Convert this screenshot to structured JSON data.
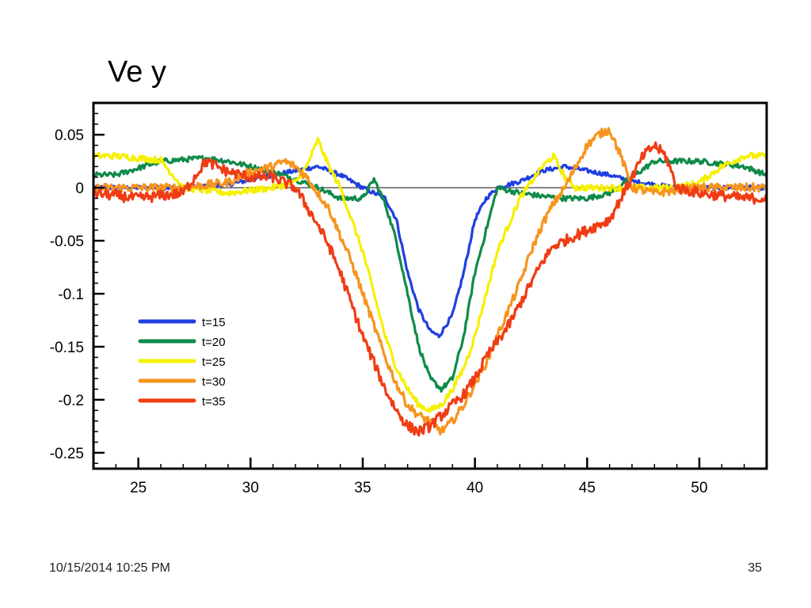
{
  "slide": {
    "title": "Ve y",
    "date": "10/15/2014 10:25 PM",
    "page_number": "35"
  },
  "chart_data": {
    "type": "line",
    "title": "",
    "xlabel": "",
    "ylabel": "",
    "xlim": [
      23,
      53
    ],
    "ylim": [
      -0.265,
      0.08
    ],
    "xticks": [
      25,
      30,
      35,
      40,
      45,
      50
    ],
    "xtick_labels": [
      "25",
      "30",
      "35",
      "40",
      "45",
      "50"
    ],
    "yticks": [
      0.05,
      0,
      -0.05,
      -0.1,
      -0.15,
      -0.2,
      -0.25
    ],
    "ytick_labels": [
      "0.05",
      "0",
      "-0.05",
      "-0.1",
      "-0.15",
      "-0.2",
      "-0.25"
    ],
    "grid": false,
    "legend_position": "lower-left",
    "reference_line": {
      "y": 0,
      "color": "#808080"
    },
    "series": [
      {
        "name": "t=15",
        "color": "#1f3fe0",
        "x": [
          23,
          25,
          27,
          29,
          31,
          32,
          33,
          34,
          35,
          35.5,
          36,
          36.5,
          37,
          37.5,
          38,
          38.4,
          39,
          39.5,
          40,
          40.5,
          41,
          42,
          43,
          44,
          45,
          46,
          47,
          48,
          49,
          50,
          51,
          53
        ],
        "y": [
          0.0,
          0.0,
          0.0,
          0.003,
          0.012,
          0.016,
          0.02,
          0.012,
          0.0,
          -0.005,
          -0.01,
          -0.03,
          -0.08,
          -0.115,
          -0.135,
          -0.14,
          -0.12,
          -0.08,
          -0.03,
          -0.01,
          0.0,
          0.006,
          0.016,
          0.02,
          0.016,
          0.012,
          0.006,
          0.003,
          0.0,
          0.0,
          0.0,
          0.0
        ]
      },
      {
        "name": "t=20",
        "color": "#0f8a4a",
        "x": [
          23,
          24,
          26,
          28,
          29,
          31,
          32,
          33,
          33.5,
          34,
          35,
          35.5,
          36,
          36.5,
          37,
          37.5,
          38,
          38.5,
          39,
          39.5,
          40,
          40.5,
          41,
          42,
          43,
          44,
          45,
          46,
          47,
          48,
          50,
          52,
          53
        ],
        "y": [
          0.012,
          0.012,
          0.025,
          0.028,
          0.025,
          0.015,
          0.008,
          0.0,
          -0.005,
          -0.01,
          -0.01,
          0.008,
          -0.015,
          -0.05,
          -0.1,
          -0.15,
          -0.18,
          -0.19,
          -0.18,
          -0.14,
          -0.08,
          -0.04,
          0.0,
          -0.005,
          -0.008,
          -0.01,
          -0.01,
          -0.005,
          0.01,
          0.025,
          0.025,
          0.02,
          0.012
        ]
      },
      {
        "name": "t=25",
        "color": "#f5f000",
        "x": [
          23,
          24,
          25,
          26,
          27,
          29,
          31,
          32,
          32.5,
          33,
          33.5,
          34,
          34.5,
          35,
          35.5,
          36,
          36.5,
          37,
          37.5,
          38,
          38.5,
          39,
          39.5,
          40,
          40.5,
          41,
          41.5,
          42,
          42.5,
          43,
          43.5,
          44,
          44.5,
          45,
          46,
          48,
          49,
          50,
          51,
          52,
          53
        ],
        "y": [
          0.03,
          0.03,
          0.028,
          0.026,
          0.0,
          -0.005,
          0.0,
          0.005,
          0.02,
          0.045,
          0.02,
          0.0,
          -0.03,
          -0.06,
          -0.1,
          -0.14,
          -0.17,
          -0.19,
          -0.205,
          -0.21,
          -0.205,
          -0.19,
          -0.17,
          -0.14,
          -0.1,
          -0.06,
          -0.035,
          -0.01,
          0.005,
          0.02,
          0.03,
          0.01,
          0.0,
          0.0,
          0.0,
          0.0,
          0.0,
          0.005,
          0.02,
          0.03,
          0.03
        ]
      },
      {
        "name": "t=30",
        "color": "#f7941d",
        "x": [
          23,
          25,
          27,
          29,
          30,
          31,
          31.5,
          32,
          32.5,
          33,
          33.5,
          34,
          34.5,
          35,
          35.5,
          36,
          36.5,
          37,
          37.5,
          38,
          38.5,
          39,
          39.5,
          40,
          40.5,
          41,
          41.5,
          42,
          42.5,
          43,
          43.5,
          44,
          44.5,
          45,
          45.5,
          46,
          46.5,
          47,
          48,
          50,
          52,
          53
        ],
        "y": [
          0.0,
          0.0,
          0.0,
          0.005,
          0.015,
          0.02,
          0.025,
          0.02,
          0.01,
          -0.005,
          -0.02,
          -0.045,
          -0.07,
          -0.1,
          -0.13,
          -0.16,
          -0.185,
          -0.205,
          -0.215,
          -0.22,
          -0.23,
          -0.22,
          -0.205,
          -0.185,
          -0.165,
          -0.14,
          -0.115,
          -0.09,
          -0.06,
          -0.035,
          -0.015,
          0.0,
          0.02,
          0.04,
          0.05,
          0.055,
          0.03,
          0.0,
          -0.005,
          0.0,
          0.0,
          0.0
        ]
      },
      {
        "name": "t=35",
        "color": "#f03c14",
        "x": [
          23,
          25,
          27,
          28,
          29,
          30,
          31,
          32,
          33,
          33.5,
          34,
          34.5,
          35,
          35.5,
          36,
          36.5,
          37,
          37.5,
          38,
          38.5,
          39,
          39.5,
          40,
          40.5,
          41,
          41.5,
          42,
          42.5,
          43,
          43.5,
          44,
          45,
          46,
          46.5,
          47,
          47.5,
          48,
          48.5,
          49,
          50,
          52,
          53
        ],
        "y": [
          -0.005,
          -0.01,
          -0.005,
          0.025,
          0.015,
          0.01,
          0.01,
          0.0,
          -0.035,
          -0.055,
          -0.08,
          -0.11,
          -0.14,
          -0.165,
          -0.19,
          -0.21,
          -0.225,
          -0.23,
          -0.225,
          -0.215,
          -0.205,
          -0.195,
          -0.18,
          -0.16,
          -0.145,
          -0.13,
          -0.11,
          -0.09,
          -0.07,
          -0.055,
          -0.05,
          -0.04,
          -0.03,
          -0.01,
          0.01,
          0.03,
          0.04,
          0.03,
          0.0,
          -0.005,
          -0.01,
          -0.01
        ]
      }
    ]
  }
}
